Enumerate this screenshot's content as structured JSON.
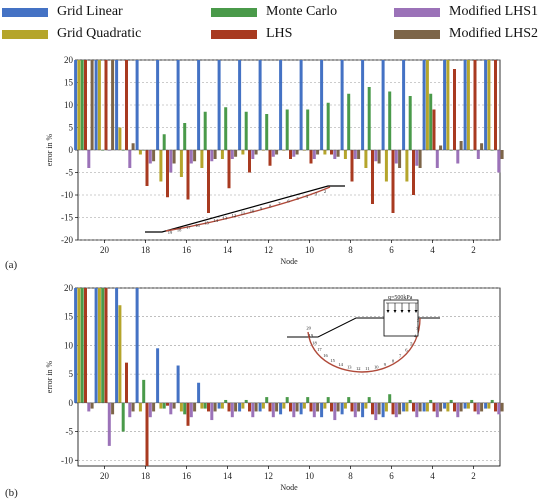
{
  "legend": [
    {
      "name": "Grid Linear",
      "color": "#4472c4"
    },
    {
      "name": "Grid Quadratic",
      "color": "#b5a52b"
    },
    {
      "name": "Monte Carlo",
      "color": "#4a9a4a"
    },
    {
      "name": "LHS",
      "color": "#a83a20"
    },
    {
      "name": "Modified LHS1",
      "color": "#9b72b8"
    },
    {
      "name": "Modified LHS2",
      "color": "#7d6548"
    }
  ],
  "chart_data": [
    {
      "type": "bar",
      "panel": "(a)",
      "xlabel": "Node",
      "ylabel": "error in %",
      "ylim": [
        -20,
        20
      ],
      "yticks": [
        -20,
        -15,
        -10,
        -5,
        0,
        5,
        10,
        15,
        20
      ],
      "categories": [
        "21",
        "20",
        "19",
        "18",
        "17",
        "16",
        "15",
        "14",
        "13",
        "12",
        "11",
        "10",
        "9",
        "8",
        "7",
        "6",
        "5",
        "4",
        "3",
        "2",
        "1"
      ],
      "xtick_labels": [
        "20",
        "18",
        "16",
        "14",
        "12",
        "10",
        "8",
        "6",
        "4",
        "2"
      ],
      "grid": "horizontal dashed",
      "inset_labels": [
        "19",
        "18",
        "17",
        "16",
        "15",
        "14",
        "13",
        "12",
        "11",
        "10",
        "9",
        "8",
        "7",
        "6",
        "5",
        "4",
        "3",
        "2"
      ],
      "series": [
        {
          "name": "Grid Linear",
          "values": [
            20,
            20,
            20,
            20,
            20,
            20,
            20,
            20,
            20,
            20,
            20,
            20,
            20,
            20,
            20,
            20,
            20,
            20,
            20,
            20,
            20
          ]
        },
        {
          "name": "Grid Quadratic",
          "values": [
            20,
            20,
            5,
            -1,
            -7,
            -6,
            -4,
            -2,
            -1,
            0,
            0,
            0,
            -1,
            -2,
            -4,
            -7,
            -7,
            20,
            20,
            20,
            20
          ]
        },
        {
          "name": "Monte Carlo",
          "values": [
            20,
            0,
            0,
            0,
            3.5,
            6,
            8.5,
            9.5,
            8.5,
            8,
            9,
            9,
            10.5,
            12.5,
            14,
            13,
            12,
            12.5,
            0,
            0,
            0
          ]
        },
        {
          "name": "LHS",
          "values": [
            20,
            20,
            20,
            -8,
            -10.5,
            -11,
            -14,
            -8.5,
            -5,
            -3.5,
            -2,
            -3,
            -1,
            -7,
            -12,
            -14,
            -10,
            9,
            18,
            20,
            20
          ]
        },
        {
          "name": "Modified LHS1",
          "values": [
            -4,
            0,
            -4,
            -3,
            -5,
            -3,
            -2.5,
            -2,
            -2,
            -1.5,
            -1.5,
            -2,
            -2,
            -2,
            -2.5,
            -3,
            -3.5,
            -4,
            -3,
            -2,
            -5
          ]
        },
        {
          "name": "Modified LHS2",
          "values": [
            20,
            20,
            1.5,
            -2.5,
            -3,
            -2.5,
            -2,
            -1.5,
            -1,
            -1,
            -1,
            -1,
            -1.5,
            -2,
            -3,
            -4,
            -4,
            1,
            2,
            1.5,
            -2
          ]
        }
      ]
    },
    {
      "type": "bar",
      "panel": "(b)",
      "xlabel": "Node",
      "ylabel": "error in %",
      "ylim": [
        -11,
        20
      ],
      "yticks": [
        -10,
        -5,
        0,
        5,
        10,
        15,
        20
      ],
      "categories": [
        "21",
        "20",
        "19",
        "18",
        "17",
        "16",
        "15",
        "14",
        "13",
        "12",
        "11",
        "10",
        "9",
        "8",
        "7",
        "6",
        "5",
        "4",
        "3",
        "2",
        "1"
      ],
      "xtick_labels": [
        "20",
        "18",
        "16",
        "14",
        "12",
        "10",
        "8",
        "6",
        "4",
        "2"
      ],
      "grid": "horizontal dashed",
      "inset_labels": [
        "20",
        "19",
        "18",
        "17",
        "16",
        "15",
        "14",
        "13",
        "12",
        "11",
        "10",
        "9",
        "8",
        "7",
        "6",
        "5",
        "4",
        "3",
        "2"
      ],
      "inset_load": "q=500kPa",
      "series": [
        {
          "name": "Grid Linear",
          "values": [
            20,
            20,
            20,
            20,
            9.5,
            6.5,
            3.5,
            -1,
            -1.5,
            -1.5,
            -2,
            -2,
            -2.5,
            -2,
            -2.5,
            -2.5,
            -1.5,
            -1.5,
            -1,
            -1,
            -1
          ]
        },
        {
          "name": "Grid Quadratic",
          "values": [
            20,
            20,
            17,
            -1.5,
            -1,
            -1.5,
            -1,
            -1,
            -1,
            -1,
            -1,
            -1,
            -1,
            -1,
            -1,
            -1.5,
            -1.5,
            -1.5,
            -1.5,
            -1,
            -1
          ]
        },
        {
          "name": "Monte Carlo",
          "values": [
            20,
            20,
            -5,
            4,
            -1,
            -2,
            -1,
            0.5,
            0.5,
            1,
            1,
            1,
            1,
            1,
            1,
            1.5,
            0.5,
            0.5,
            0.5,
            0.5,
            0.5
          ]
        },
        {
          "name": "LHS",
          "values": [
            20,
            20,
            7,
            -11,
            -0.5,
            -4,
            -1.5,
            -1.5,
            -1.5,
            -1.5,
            -1.5,
            -1.5,
            -1.5,
            -1.5,
            -2,
            -2,
            -1.5,
            -1.5,
            -1.5,
            -1.5,
            -1.5
          ]
        },
        {
          "name": "Modified LHS1",
          "values": [
            -1.5,
            -7.5,
            -2.5,
            -2.5,
            -2,
            -2.5,
            -3,
            -2.5,
            -2.5,
            -2.5,
            -2.5,
            -2.5,
            -3,
            -2.5,
            -3,
            -2.5,
            -2.5,
            -2.5,
            -2.5,
            -2,
            -2
          ]
        },
        {
          "name": "Modified LHS2",
          "values": [
            -1,
            -2,
            -1.5,
            -1.5,
            -1,
            -1.5,
            -1.5,
            -1.5,
            -1.5,
            -1.5,
            -1.5,
            -1.5,
            -1.5,
            -1.5,
            -2,
            -2,
            -1.5,
            -1.5,
            -1.5,
            -1.5,
            -1.5
          ]
        }
      ]
    }
  ]
}
